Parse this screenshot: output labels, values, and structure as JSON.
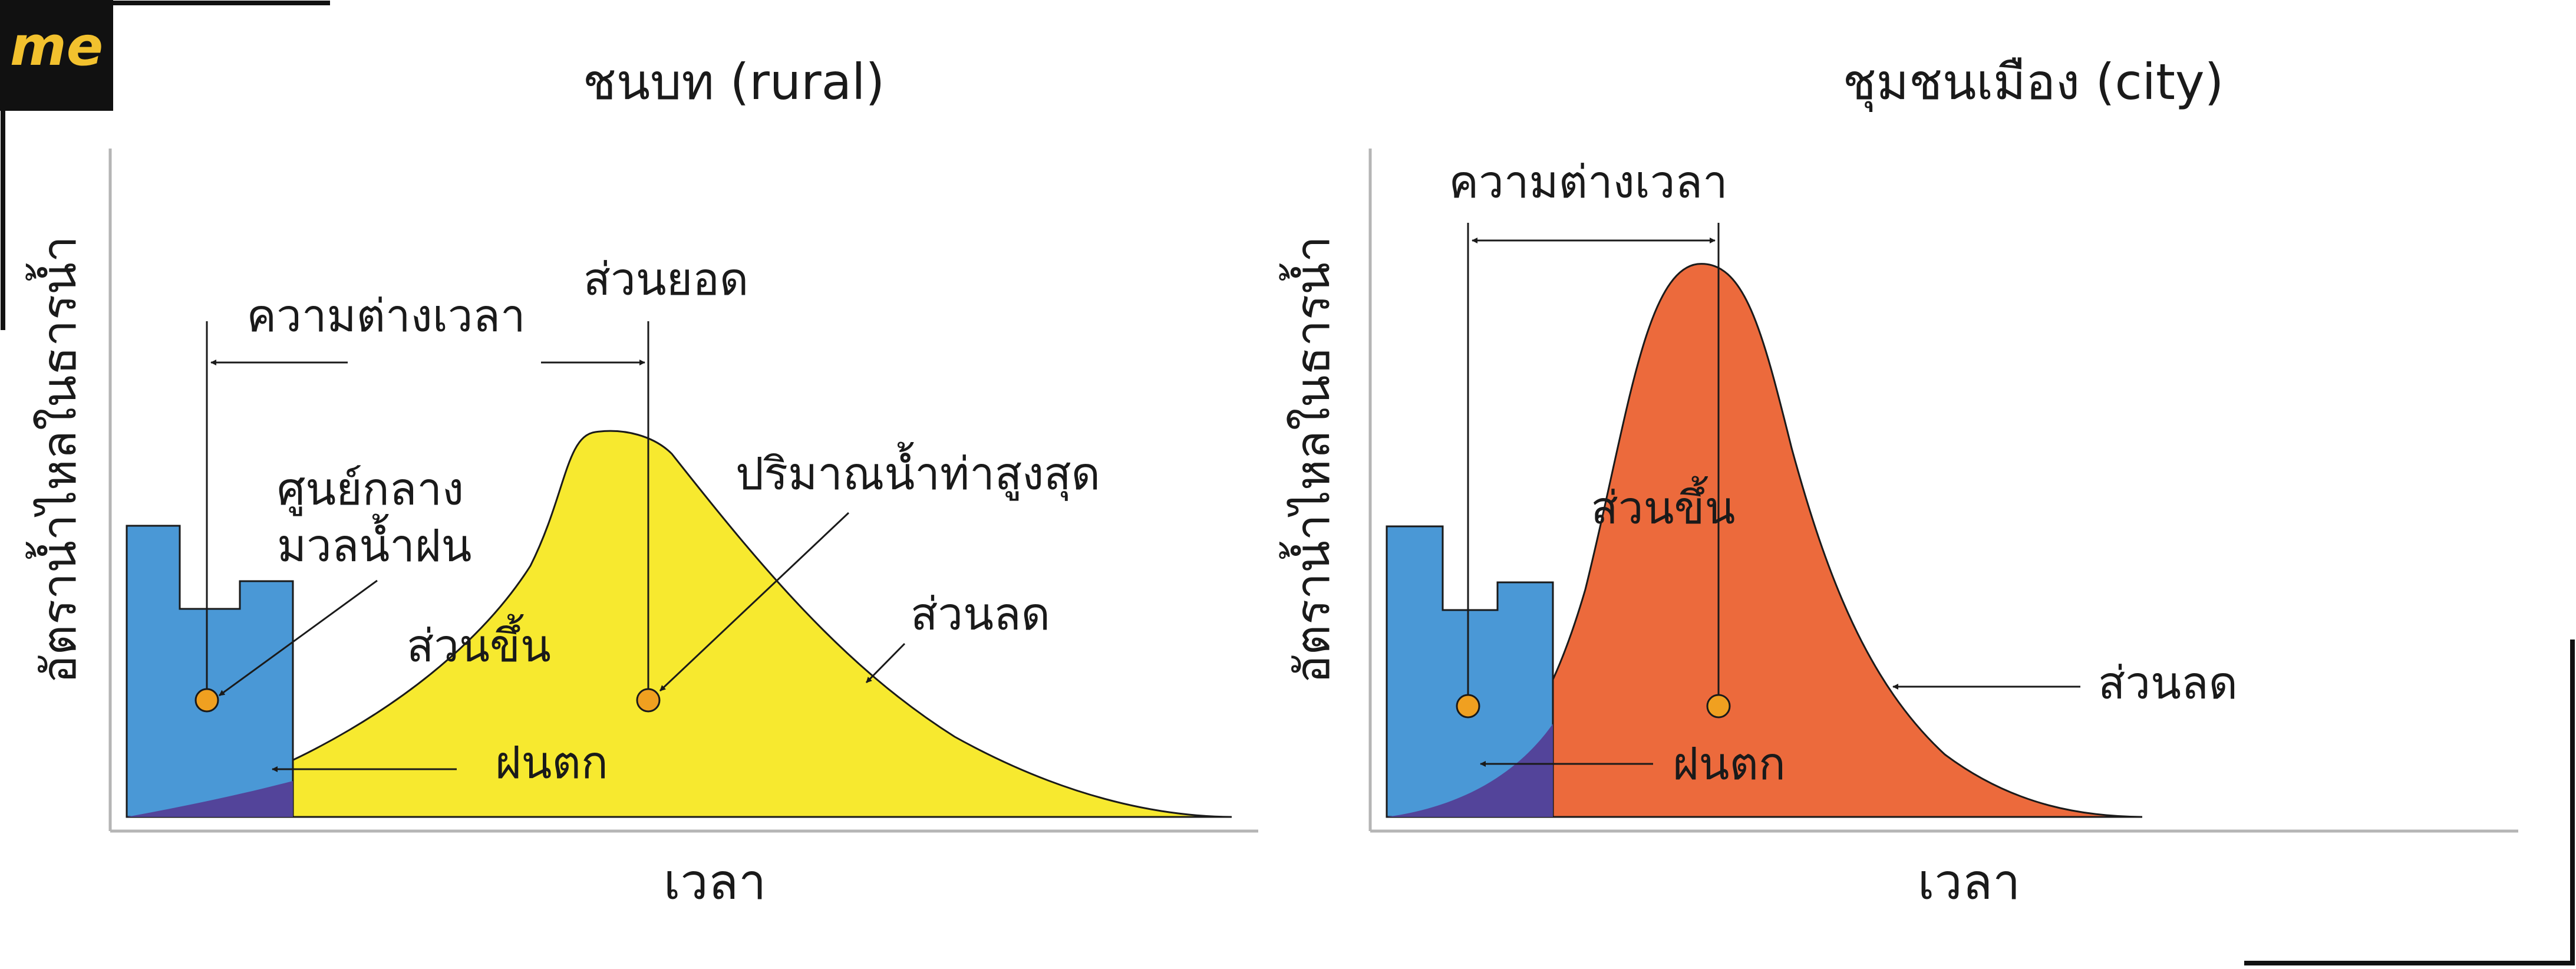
{
  "logo": {
    "text": "me",
    "bg": "#111111",
    "fg": "#f2c12e"
  },
  "colors": {
    "rain_blue": "#4a98d6",
    "overlap_purple": "#53449a",
    "rural_fill": "#f7e92f",
    "city_fill": "#ec6a3c",
    "centroid": "#f0a020",
    "axis": "#b5b5b5",
    "ink": "#1a1a1a"
  },
  "rural": {
    "title": "ชนบท (rural)",
    "ylabel": "อัตราน้ำไหลในธารน้ำ",
    "xlabel": "เวลา",
    "lag": "ความต่างเวลา",
    "peak": "ส่วนยอด",
    "centroid": "ศูนย์กลาง",
    "centroid2": "มวลน้ำฝน",
    "peak_flow": "ปริมาณน้ำท่าสูงสุด",
    "rising": "ส่วนขึ้น",
    "falling": "ส่วนลด",
    "rain": "ฝนตก"
  },
  "city": {
    "title": "ชุมชนเมือง (city)",
    "ylabel": "อัตราน้ำไหลในธารน้ำ",
    "xlabel": "เวลา",
    "lag": "ความต่างเวลา",
    "rising": "ส่วนขึ้น",
    "falling": "ส่วนลด",
    "rain": "ฝนตก"
  }
}
